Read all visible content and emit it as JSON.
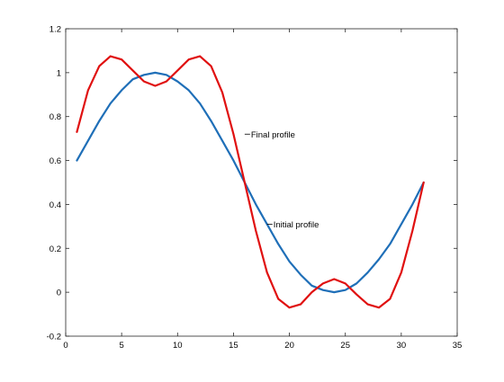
{
  "chart_data": {
    "type": "line",
    "xlim": [
      0,
      35
    ],
    "ylim": [
      -0.2,
      1.2
    ],
    "xticks": [
      0,
      5,
      10,
      15,
      20,
      25,
      30,
      35
    ],
    "yticks": [
      -0.2,
      0,
      0.2,
      0.4,
      0.6,
      0.8,
      1,
      1.2
    ],
    "xtick_labels": [
      "0",
      "5",
      "10",
      "15",
      "20",
      "25",
      "30",
      "35"
    ],
    "ytick_labels": [
      "-0.2",
      "0",
      "0.2",
      "0.4",
      "0.6",
      "0.8",
      "1",
      "1.2"
    ],
    "grid": false,
    "series": [
      {
        "color": "#1f6fb8",
        "x": [
          1,
          2,
          3,
          4,
          5,
          6,
          7,
          8,
          9,
          10,
          11,
          12,
          13,
          14,
          15,
          16,
          17,
          18,
          19,
          20,
          21,
          22,
          23,
          24,
          25,
          26,
          27,
          28,
          29,
          30,
          31,
          32
        ],
        "values": [
          0.6,
          0.69,
          0.78,
          0.86,
          0.92,
          0.97,
          0.99,
          1.0,
          0.99,
          0.96,
          0.92,
          0.86,
          0.78,
          0.69,
          0.6,
          0.5,
          0.4,
          0.31,
          0.22,
          0.14,
          0.08,
          0.03,
          0.01,
          0.0,
          0.01,
          0.04,
          0.09,
          0.15,
          0.22,
          0.31,
          0.4,
          0.5
        ]
      },
      {
        "color": "#e01010",
        "x": [
          1,
          2,
          3,
          4,
          5,
          6,
          7,
          8,
          9,
          10,
          11,
          12,
          13,
          14,
          15,
          16,
          17,
          18,
          19,
          20,
          21,
          22,
          23,
          24,
          25,
          26,
          27,
          28,
          29,
          30,
          31,
          32
        ],
        "values": [
          0.73,
          0.92,
          1.03,
          1.075,
          1.06,
          1.01,
          0.96,
          0.94,
          0.96,
          1.01,
          1.06,
          1.075,
          1.03,
          0.91,
          0.72,
          0.5,
          0.28,
          0.09,
          -0.03,
          -0.07,
          -0.055,
          0.0,
          0.04,
          0.06,
          0.04,
          -0.01,
          -0.055,
          -0.07,
          -0.03,
          0.09,
          0.28,
          0.5
        ]
      }
    ],
    "annotations": [
      {
        "text": "Final profile",
        "x": 16.0,
        "y": 0.72
      },
      {
        "text": "Initial profile",
        "x": 18.0,
        "y": 0.31
      }
    ]
  }
}
